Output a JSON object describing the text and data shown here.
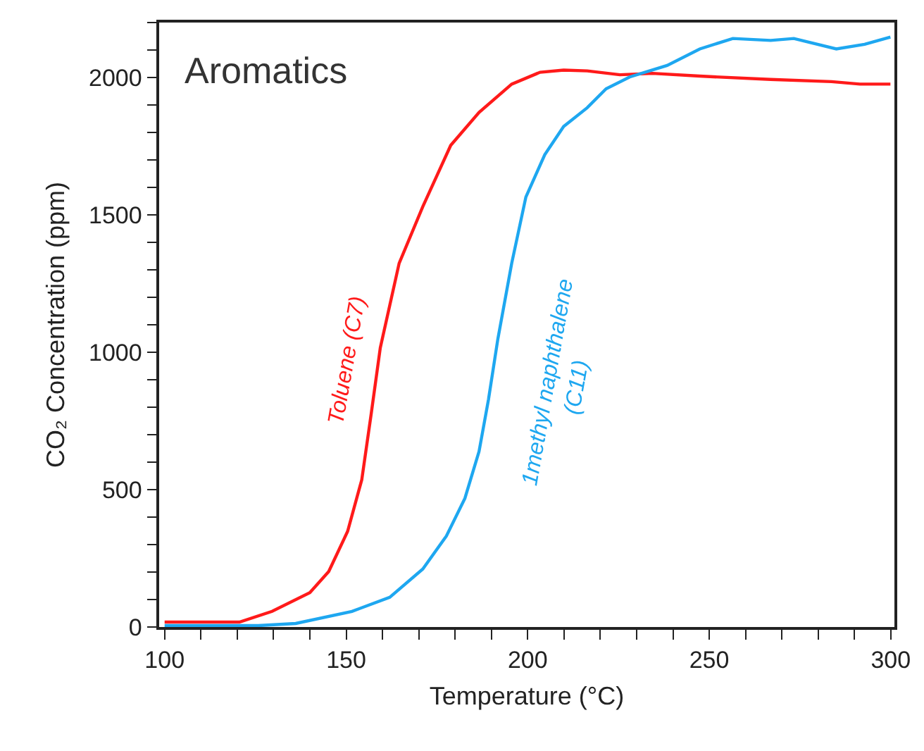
{
  "chart_data": {
    "type": "line",
    "title": "Aromatics",
    "xlabel": "Temperature (°C)",
    "ylabel": "CO₂ Concentration (ppm)",
    "xlim": [
      98.5,
      301
    ],
    "ylim": [
      0,
      2200
    ],
    "xticks": [
      100,
      {
        "value": 110,
        "label": null
      },
      {
        "value": 120,
        "label": null
      },
      {
        "value": 130,
        "label": null
      },
      {
        "value": 140,
        "label": null
      },
      150,
      {
        "value": 160,
        "label": null
      },
      {
        "value": 170,
        "label": null
      },
      {
        "value": 180,
        "label": null
      },
      {
        "value": 190,
        "label": null
      },
      200,
      {
        "value": 210,
        "label": null
      },
      {
        "value": 220,
        "label": null
      },
      {
        "value": 230,
        "label": null
      },
      {
        "value": 240,
        "label": null
      },
      250,
      {
        "value": 260,
        "label": null
      },
      {
        "value": 270,
        "label": null
      },
      {
        "value": 280,
        "label": null
      },
      {
        "value": 290,
        "label": null
      },
      300
    ],
    "yticks": [
      0,
      {
        "value": 100,
        "label": null
      },
      {
        "value": 200,
        "label": null
      },
      {
        "value": 300,
        "label": null
      },
      {
        "value": 400,
        "label": null
      },
      500,
      {
        "value": 600,
        "label": null
      },
      {
        "value": 700,
        "label": null
      },
      {
        "value": 800,
        "label": null
      },
      {
        "value": 900,
        "label": null
      },
      1000,
      {
        "value": 1100,
        "label": null
      },
      {
        "value": 1200,
        "label": null
      },
      {
        "value": 1300,
        "label": null
      },
      {
        "value": 1400,
        "label": null
      },
      1500,
      {
        "value": 1600,
        "label": null
      },
      {
        "value": 1700,
        "label": null
      },
      {
        "value": 1800,
        "label": null
      },
      {
        "value": 1900,
        "label": null
      },
      2000,
      {
        "value": 2100,
        "label": null
      },
      {
        "value": 2200,
        "label": null
      }
    ],
    "grid": false,
    "legend": false,
    "marker": "none",
    "line_style": "solid",
    "series": [
      {
        "name": "Toluene (C7)",
        "color": "#ff1a1a",
        "x": [
          100,
          120.6,
          129.6,
          140,
          145.2,
          150.4,
          154.3,
          156.9,
          159.4,
          164.6,
          171.1,
          178.8,
          186.6,
          195.6,
          203.4,
          209.9,
          216.4,
          225.4,
          234.4,
          247.4,
          266.9,
          283.7,
          291.5,
          299.9
        ],
        "values": [
          18,
          18,
          57,
          125,
          202,
          348,
          536,
          776,
          1016,
          1324,
          1530,
          1753,
          1873,
          1976,
          2019,
          2027,
          2024,
          2010,
          2015,
          2005,
          1993,
          1985,
          1976,
          1976
        ]
      },
      {
        "name": "1methyl naphthalene (C11)",
        "color": "#1ea7f0",
        "x": [
          100,
          125.8,
          136.1,
          151.6,
          162,
          171.1,
          177.6,
          182.7,
          186.6,
          189.2,
          191.8,
          195.6,
          199.5,
          204.7,
          209.9,
          216.4,
          221.6,
          228.1,
          238.4,
          247.4,
          256.5,
          266.9,
          273.3,
          285,
          292.8,
          299.9
        ],
        "values": [
          5,
          5,
          13,
          57,
          108,
          211,
          331,
          468,
          639,
          828,
          1050,
          1324,
          1565,
          1719,
          1822,
          1890,
          1959,
          2002,
          2044,
          2104,
          2142,
          2135,
          2142,
          2104,
          2121,
          2147
        ]
      }
    ]
  }
}
